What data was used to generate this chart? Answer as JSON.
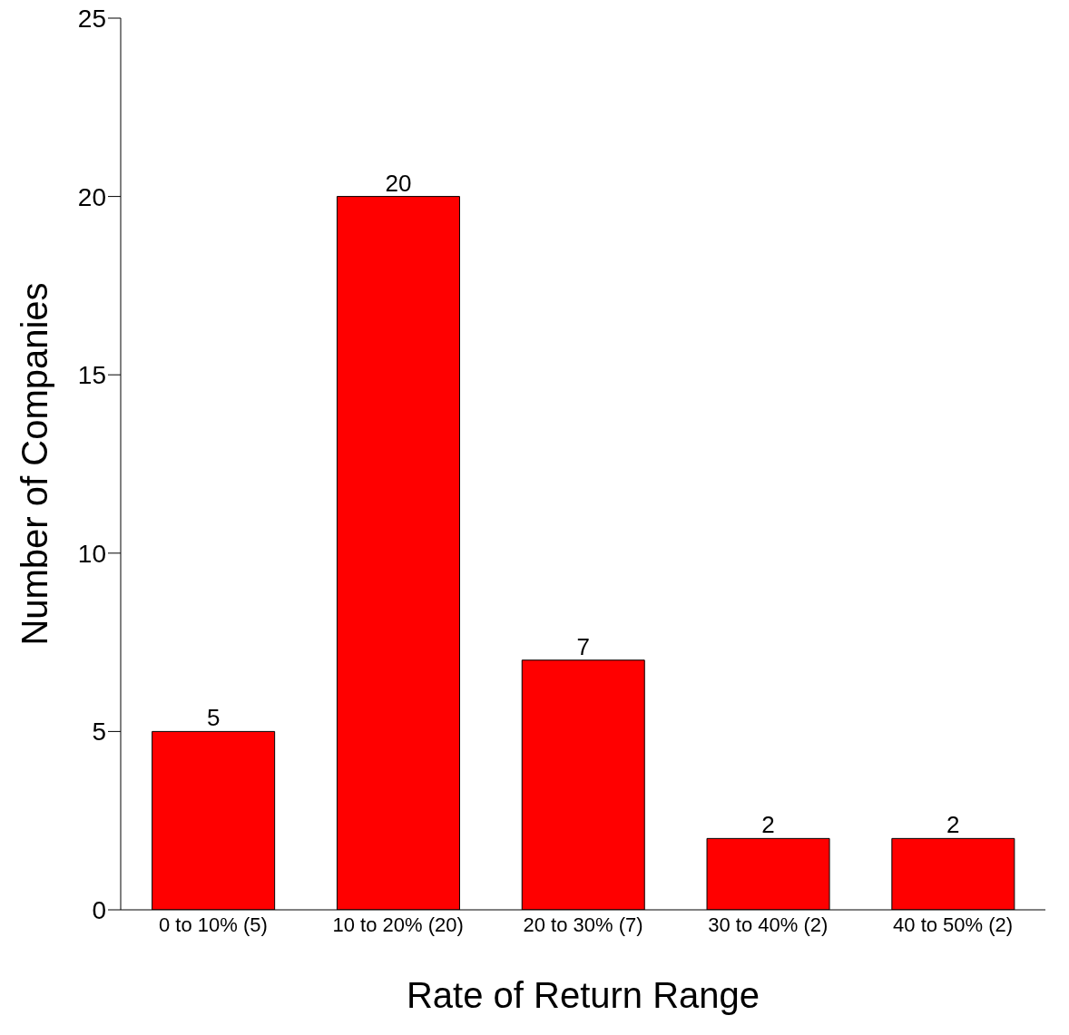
{
  "chart_data": {
    "type": "bar",
    "xlabel": "Rate of Return Range",
    "ylabel": "Number of Companies",
    "categories": [
      "0 to 10% (5)",
      "10 to 20% (20)",
      "20 to 30% (7)",
      "30 to 40% (2)",
      "40 to 50% (2)"
    ],
    "values": [
      5,
      20,
      7,
      2,
      2
    ],
    "color": "#ff0000",
    "ylim": [
      0,
      25
    ],
    "yticks": [
      0,
      5,
      10,
      15,
      20,
      25
    ],
    "grid": false,
    "data_labels": true
  }
}
